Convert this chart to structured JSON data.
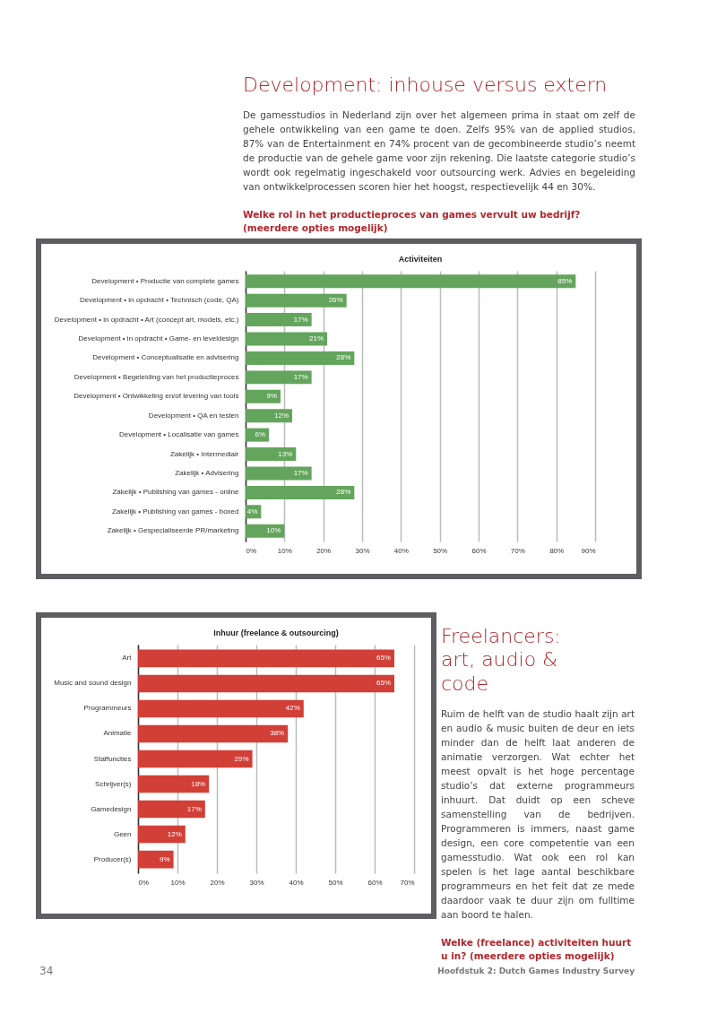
{
  "chart_data": [
    {
      "type": "bar",
      "orientation": "horizontal",
      "title": "Activiteiten",
      "annotations": [
        "Development: inhouse versus extern",
        "De gamesstudios in Nederland zijn over het algemeen prima in staat om zelf de gehele ontwikkeling van een game te doen. Zelfs 95% van de applied studios, 87% van de Entertainment en 74% procent van de gecombineerde studio’s neemt de productie van de gehele game voor zijn rekening. Die laatste categorie studio’s wordt ook regelmatig ingeschakeld voor outsourcing werk. Advies en begeleiding van ontwikkelprocessen scoren hier het hoogst, respectievelijk 44 en 30%.",
        "Welke rol in het productieproces van games vervult uw bedrijf? (meerdere opties mogelijk)"
      ],
      "categories": [
        "Development • Productie van complete games",
        "Development • in opdracht • Technisch (code, QA)",
        "Development • in opdracht • Art (concept art, models, etc.)",
        "Development • in opdracht • Game- en leveldesign",
        "Development • Conceptualisatie en advisering",
        "Development • Begeleiding van het productieproces",
        "Development • Ontwikkeling en/of levering van tools",
        "Development • QA en testen",
        "Development • Localisatie van games",
        "Zakelijk • Intermediair",
        "Zakelijk • Advisering",
        "Zakelijk • Publishing van games - online",
        "Zakelijk • Publishing van games - boxed",
        "Zakelijk • Gespecialiseerde PR/marketing"
      ],
      "series": [
        {
          "color": "#63a55c",
          "values": [
            85,
            26,
            17,
            21,
            28,
            17,
            9,
            12,
            6,
            13,
            17,
            28,
            4,
            10
          ],
          "value_labels": [
            "85%",
            "26%",
            "17%",
            "21%",
            "28%",
            "17%",
            "9%",
            "12%",
            "6%",
            "13%",
            "17%",
            "28%",
            "4%",
            "10%"
          ]
        }
      ],
      "xlim": [
        0,
        90
      ],
      "xticks": [
        {
          "value": 0,
          "label": "0%"
        },
        {
          "value": 10,
          "label": "10%"
        },
        {
          "value": 20,
          "label": "20%"
        },
        {
          "value": 30,
          "label": "30%"
        },
        {
          "value": 40,
          "label": "40%"
        },
        {
          "value": 50,
          "label": "50%"
        },
        {
          "value": 60,
          "label": "60%"
        },
        {
          "value": 70,
          "label": "70%"
        },
        {
          "value": 80,
          "label": "80%"
        },
        {
          "value": 90,
          "label": "90%"
        }
      ],
      "grid": "x"
    },
    {
      "type": "bar",
      "orientation": "horizontal",
      "title": "Inhuur (freelance & outsourcing)",
      "annotations": [
        "Freelancers: art, audio & code",
        "Ruim de helft van de studio haalt zijn art en audio & music buiten de deur en iets minder dan de helft laat anderen de animatie verzorgen. Wat echter het meest opvalt is het hoge percentage studio’s dat externe programmeurs inhuurt. Dat duidt op een scheve samenstelling van de bedrijven. Programmeren is immers, naast game design, een core competentie van een gamesstudio. Wat ook een rol kan spelen is het lage aantal beschikbare programmeurs en het feit dat ze mede daardoor vaak te duur zijn om fulltime aan boord te halen.",
        "Welke (freelance) activiteiten huurt u in? (meerdere opties mogelijk)",
        "34",
        "Hoofdstuk 2: Dutch Games Industry Survey"
      ],
      "categories": [
        "Art",
        "Music and sound design",
        "Programmeurs",
        "Animatie",
        "Staffuncties",
        "Schrijver(s)",
        "Gamedesign",
        "Geen",
        "Producer(s)"
      ],
      "series": [
        {
          "color": "#d13f37",
          "values": [
            65,
            65,
            42,
            38,
            29,
            18,
            17,
            12,
            9
          ],
          "value_labels": [
            "65%",
            "65%",
            "42%",
            "38%",
            "29%",
            "18%",
            "17%",
            "12%",
            "9%"
          ]
        }
      ],
      "xlim": [
        0,
        70
      ],
      "xticks": [
        {
          "value": 0,
          "label": "0%"
        },
        {
          "value": 10,
          "label": "10%"
        },
        {
          "value": 20,
          "label": "20%"
        },
        {
          "value": 30,
          "label": "30%"
        },
        {
          "value": 40,
          "label": "40%"
        },
        {
          "value": 50,
          "label": "50%"
        },
        {
          "value": 60,
          "label": "60%"
        },
        {
          "value": 70,
          "label": "70%"
        }
      ],
      "grid": "x"
    }
  ]
}
